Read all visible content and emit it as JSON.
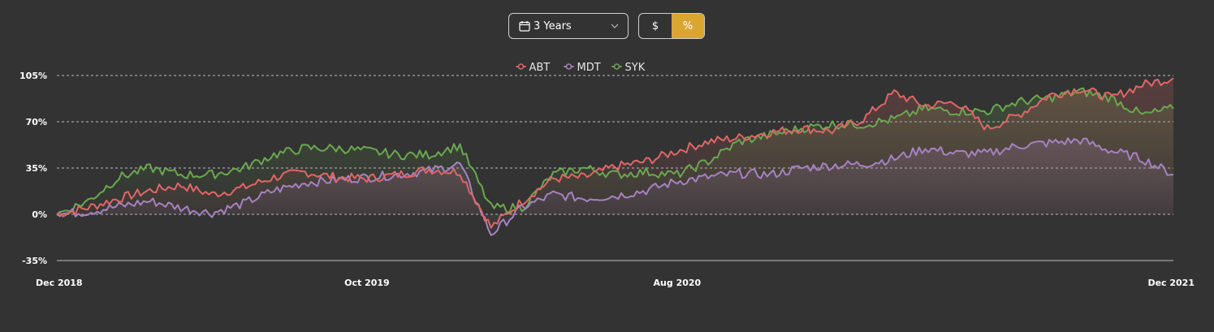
{
  "controls": {
    "period_label": "3 Years",
    "currency_option": "$",
    "percent_option": "%",
    "active_option": "percent",
    "accent_color": "#d9a632",
    "calendar_icon": "calendar-icon",
    "chevron_icon": "chevron-down-icon"
  },
  "chart_data": {
    "type": "line",
    "title": "",
    "xlabel": "",
    "ylabel": "",
    "ylim": [
      -35,
      105
    ],
    "yticks": [
      105,
      70,
      35,
      0,
      -35
    ],
    "ytick_labels": [
      "105%",
      "70%",
      "35%",
      "0%",
      "-35%"
    ],
    "xtick_labels": [
      "Dec 2018",
      "Oct 2019",
      "Aug 2020",
      "Dec 2021"
    ],
    "xtick_positions": [
      0,
      10,
      20,
      36
    ],
    "x_months": [
      "Dec 2018",
      "Jan 2019",
      "Feb 2019",
      "Mar 2019",
      "Apr 2019",
      "May 2019",
      "Jun 2019",
      "Jul 2019",
      "Aug 2019",
      "Sep 2019",
      "Oct 2019",
      "Nov 2019",
      "Dec 2019",
      "Jan 2020",
      "Feb 2020",
      "Mar 2020",
      "Apr 2020",
      "May 2020",
      "Jun 2020",
      "Jul 2020",
      "Aug 2020",
      "Sep 2020",
      "Oct 2020",
      "Nov 2020",
      "Dec 2020",
      "Jan 2021",
      "Feb 2021",
      "Mar 2021",
      "Apr 2021",
      "May 2021",
      "Jun 2021",
      "Jul 2021",
      "Aug 2021",
      "Sep 2021",
      "Oct 2021",
      "Nov 2021",
      "Dec 2021"
    ],
    "legend_position": "top-center",
    "grid": true,
    "series": [
      {
        "name": "ABT",
        "color": "#e06666",
        "values": [
          0,
          5,
          12,
          18,
          22,
          15,
          20,
          28,
          32,
          28,
          27,
          30,
          34,
          32,
          -10,
          10,
          27,
          28,
          36,
          40,
          48,
          55,
          58,
          62,
          65,
          63,
          72,
          92,
          82,
          85,
          65,
          75,
          90,
          95,
          88,
          98,
          103
        ]
      },
      {
        "name": "MDT",
        "color": "#a782c3",
        "values": [
          0,
          2,
          6,
          10,
          5,
          1,
          8,
          18,
          24,
          26,
          28,
          30,
          33,
          38,
          -15,
          5,
          15,
          12,
          14,
          18,
          25,
          28,
          31,
          30,
          35,
          37,
          38,
          42,
          50,
          46,
          46,
          52,
          54,
          56,
          48,
          42,
          30
        ]
      },
      {
        "name": "SYK",
        "color": "#6aa84f",
        "values": [
          0,
          10,
          28,
          35,
          30,
          30,
          35,
          45,
          50,
          50,
          48,
          45,
          45,
          52,
          5,
          5,
          30,
          35,
          30,
          32,
          30,
          40,
          55,
          60,
          65,
          68,
          68,
          72,
          80,
          78,
          78,
          85,
          88,
          93,
          88,
          75,
          80
        ]
      }
    ]
  }
}
